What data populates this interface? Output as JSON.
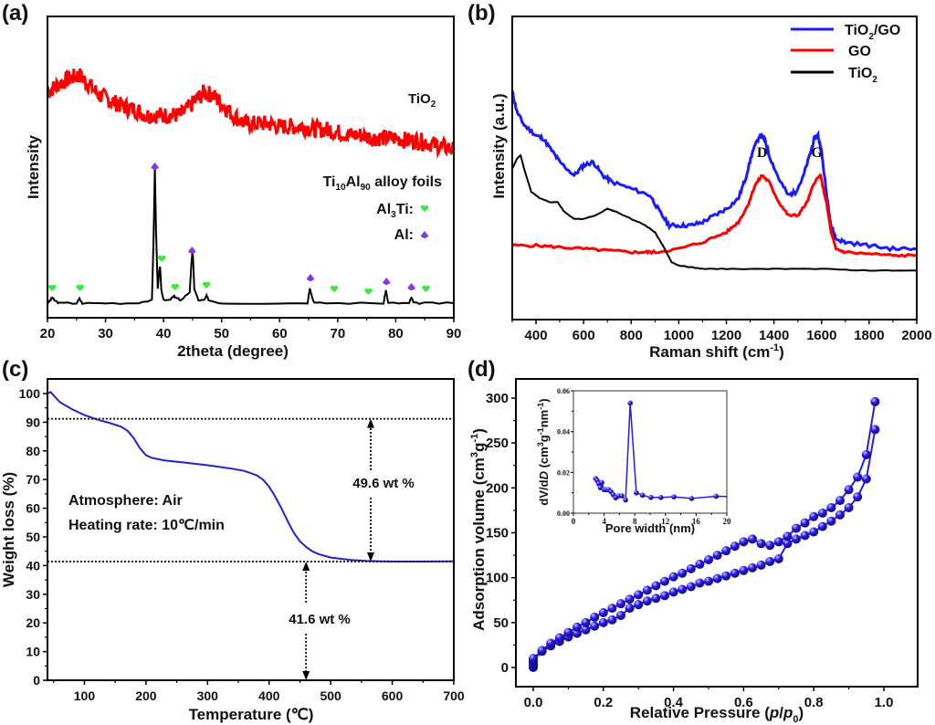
{
  "chart_data": [
    {
      "id": "a",
      "panel_label": "(a)",
      "type": "line",
      "title": "",
      "xlabel": "2theta (degree)",
      "ylabel": "Intensity",
      "xlim": [
        20,
        90
      ],
      "xticks": [
        20,
        30,
        40,
        50,
        60,
        70,
        80,
        90
      ],
      "yticks_shown": false,
      "series": [
        {
          "name": "TiO2",
          "label_main": "TiO",
          "label_sub": "2",
          "color": "#ff0000",
          "x": [
            20,
            22,
            24,
            25.5,
            27,
            29,
            31,
            33,
            35,
            37,
            39,
            41,
            43,
            45,
            47,
            48.5,
            50,
            52,
            54,
            56,
            58,
            60,
            62,
            64,
            66,
            68,
            70,
            72,
            74,
            76,
            78,
            80,
            82,
            84,
            86,
            88,
            90
          ],
          "y": [
            0.74,
            0.77,
            0.79,
            0.8,
            0.77,
            0.73,
            0.71,
            0.69,
            0.68,
            0.66,
            0.66,
            0.66,
            0.66,
            0.7,
            0.74,
            0.73,
            0.7,
            0.66,
            0.63,
            0.63,
            0.63,
            0.62,
            0.62,
            0.62,
            0.61,
            0.61,
            0.6,
            0.59,
            0.59,
            0.58,
            0.58,
            0.58,
            0.57,
            0.57,
            0.56,
            0.55,
            0.54
          ]
        },
        {
          "name": "Ti10Al90 alloy foils",
          "color": "#000000",
          "x": [
            20,
            20.5,
            20.8,
            21.2,
            22,
            25,
            25.5,
            26,
            30,
            35,
            38,
            38.3,
            38.5,
            38.7,
            39,
            39.2,
            39.4,
            39.6,
            40,
            41,
            41.8,
            42,
            42.5,
            43,
            44.5,
            44.8,
            45,
            45.3,
            46,
            47,
            47.4,
            47.8,
            50,
            55,
            64.8,
            65.2,
            65.6,
            66,
            70,
            77.9,
            78.3,
            78.7,
            82.3,
            82.7,
            83.1,
            85,
            90
          ],
          "y": [
            0.0,
            0.01,
            0.02,
            0.01,
            0.0,
            0.0,
            0.015,
            0.0,
            0.0,
            0.0,
            0.01,
            0.25,
            0.48,
            0.25,
            0.05,
            0.1,
            0.13,
            0.05,
            0.01,
            0.01,
            0.025,
            0.02,
            0.015,
            0.01,
            0.04,
            0.14,
            0.19,
            0.05,
            0.01,
            0.01,
            0.025,
            0.01,
            0.0,
            0.0,
            0.0,
            0.055,
            0.02,
            0.0,
            0.0,
            0.0,
            0.045,
            0.0,
            0.0,
            0.02,
            0.0,
            0.0,
            0.0
          ]
        }
      ],
      "legend": {
        "title_main": "Ti",
        "title_sub1": "10",
        "title_mid": "Al",
        "title_sub2": "90",
        "title_tail": " alloy foils",
        "entries": [
          {
            "label_main": "Al",
            "label_sub": "3",
            "label_tail": "Ti:",
            "marker": "heart",
            "color": "#33ee33"
          },
          {
            "label_main": "Al:",
            "marker": "spade",
            "color": "#8833ee"
          }
        ],
        "position": "right"
      },
      "markers": [
        {
          "x": 20.8,
          "type": "heart"
        },
        {
          "x": 25.6,
          "type": "heart"
        },
        {
          "x": 38.5,
          "type": "spade",
          "high": true
        },
        {
          "x": 39.7,
          "type": "heart"
        },
        {
          "x": 42.0,
          "type": "heart"
        },
        {
          "x": 44.9,
          "type": "spade"
        },
        {
          "x": 47.4,
          "type": "heart"
        },
        {
          "x": 65.3,
          "type": "spade"
        },
        {
          "x": 69.4,
          "type": "heart"
        },
        {
          "x": 75.3,
          "type": "heart"
        },
        {
          "x": 78.4,
          "type": "spade"
        },
        {
          "x": 82.7,
          "type": "spade"
        },
        {
          "x": 85.2,
          "type": "heart"
        }
      ]
    },
    {
      "id": "b",
      "panel_label": "(b)",
      "type": "line",
      "xlabel_main": "Raman shift (cm",
      "xlabel_sup": "-1",
      "xlabel_tail": ")",
      "ylabel": "Intensity (a.u.)",
      "xlim": [
        300,
        2000
      ],
      "xticks": [
        400,
        600,
        800,
        1000,
        1200,
        1400,
        1600,
        1800,
        2000
      ],
      "yticks_shown": false,
      "annotations": [
        {
          "text": "D",
          "x": 1350
        },
        {
          "text": "G",
          "x": 1580
        }
      ],
      "series": [
        {
          "name": "TiO2/GO",
          "label_main": "TiO",
          "label_sub": "2",
          "label_tail": "/GO",
          "color": "#1a1aff",
          "x": [
            300,
            320,
            350,
            400,
            430,
            470,
            500,
            560,
            600,
            640,
            680,
            720,
            800,
            880,
            920,
            960,
            1000,
            1050,
            1100,
            1150,
            1200,
            1250,
            1280,
            1310,
            1340,
            1360,
            1380,
            1420,
            1460,
            1490,
            1520,
            1550,
            1570,
            1585,
            1600,
            1620,
            1640,
            1660,
            1700,
            1800,
            1900,
            2000
          ],
          "y": [
            0.78,
            0.72,
            0.68,
            0.65,
            0.64,
            0.6,
            0.57,
            0.53,
            0.56,
            0.57,
            0.53,
            0.51,
            0.49,
            0.47,
            0.42,
            0.38,
            0.38,
            0.38,
            0.39,
            0.41,
            0.43,
            0.46,
            0.52,
            0.6,
            0.65,
            0.64,
            0.59,
            0.52,
            0.47,
            0.48,
            0.52,
            0.59,
            0.64,
            0.65,
            0.6,
            0.48,
            0.38,
            0.34,
            0.33,
            0.32,
            0.31,
            0.31
          ]
        },
        {
          "name": "GO",
          "label_main": "GO",
          "color": "#ff0000",
          "x": [
            300,
            400,
            500,
            600,
            700,
            800,
            860,
            900,
            1000,
            1100,
            1200,
            1250,
            1290,
            1320,
            1350,
            1380,
            1420,
            1460,
            1500,
            1540,
            1570,
            1595,
            1620,
            1640,
            1660,
            1700,
            1800,
            1900,
            2000
          ],
          "y": [
            0.32,
            0.32,
            0.315,
            0.31,
            0.305,
            0.3,
            0.3,
            0.3,
            0.31,
            0.33,
            0.36,
            0.39,
            0.44,
            0.5,
            0.53,
            0.51,
            0.45,
            0.41,
            0.41,
            0.45,
            0.51,
            0.53,
            0.45,
            0.36,
            0.31,
            0.3,
            0.295,
            0.29,
            0.29
          ]
        },
        {
          "name": "TiO2",
          "label_main": "TiO",
          "label_sub": "2",
          "color": "#000000",
          "x": [
            300,
            320,
            335,
            350,
            380,
            420,
            460,
            490,
            520,
            560,
            600,
            650,
            700,
            740,
            800,
            860,
            900,
            940,
            970,
            1000,
            1050,
            1100,
            1200,
            1400,
            1600,
            1800,
            2000
          ],
          "y": [
            0.55,
            0.58,
            0.59,
            0.55,
            0.48,
            0.46,
            0.45,
            0.45,
            0.42,
            0.4,
            0.4,
            0.41,
            0.43,
            0.42,
            0.4,
            0.38,
            0.36,
            0.31,
            0.27,
            0.26,
            0.255,
            0.25,
            0.25,
            0.25,
            0.25,
            0.245,
            0.245
          ]
        }
      ],
      "legend_position": "top-right"
    },
    {
      "id": "c",
      "panel_label": "(c)",
      "type": "line",
      "xlabel": "Temperature (℃)",
      "ylabel": "Weight loss (%)",
      "xlim": [
        40,
        700
      ],
      "ylim": [
        0,
        104
      ],
      "xticks": [
        100,
        200,
        300,
        400,
        500,
        600,
        700
      ],
      "yticks": [
        0,
        10,
        20,
        30,
        40,
        50,
        60,
        70,
        80,
        90,
        100
      ],
      "series": [
        {
          "name": "TGA",
          "color": "#2222cc",
          "x": [
            40,
            45,
            60,
            80,
            100,
            120,
            140,
            160,
            170,
            180,
            190,
            200,
            210,
            230,
            260,
            300,
            340,
            360,
            380,
            390,
            400,
            410,
            420,
            430,
            440,
            450,
            460,
            470,
            480,
            500,
            530,
            560,
            600,
            650,
            700
          ],
          "y": [
            100,
            100.5,
            97,
            94.5,
            92.5,
            91,
            89.8,
            88.4,
            87,
            84.5,
            81,
            78.5,
            77.5,
            76.7,
            76,
            75,
            73.8,
            73,
            71.5,
            70,
            67.5,
            64,
            60,
            55.5,
            51.5,
            48.5,
            46.5,
            45,
            44,
            42.8,
            42,
            41.6,
            41.4,
            41.4,
            41.5
          ]
        }
      ],
      "reference_lines": [
        91.2,
        41.4
      ],
      "annotations": [
        {
          "text": "Atmosphere: Air"
        },
        {
          "text": "Heating rate: 10℃/min"
        },
        {
          "text": "49.6 wt %",
          "x": 565,
          "from": 41.4,
          "to": 91.2
        },
        {
          "text": "41.6 wt %",
          "x": 460,
          "from": 0,
          "to": 41.4
        }
      ]
    },
    {
      "id": "d",
      "panel_label": "(d)",
      "type": "scatter",
      "xlabel_main": "Relative Pressure (",
      "xlabel_p": "p",
      "xlabel_slash": "/",
      "xlabel_p0": "p",
      "xlabel_sub": "0",
      "xlabel_tail": ")",
      "ylabel_main": "Adsorption volume (cm",
      "ylabel_sup1": "3",
      "ylabel_mid": "g",
      "ylabel_sup2": "-1",
      "ylabel_tail": ")",
      "xlim": [
        -0.05,
        1.1
      ],
      "ylim": [
        -10,
        310
      ],
      "xticks": [
        0.0,
        0.2,
        0.4,
        0.6,
        0.8,
        1.0
      ],
      "xtick_labels": [
        "0.0",
        "0.2",
        "0.4",
        "0.6",
        "0.8",
        "1.0"
      ],
      "yticks": [
        0,
        50,
        100,
        150,
        200,
        250,
        300
      ],
      "marker_color": "#2a1aee",
      "series": [
        {
          "name": "adsorption",
          "x": [
            0.0,
            0.0,
            0.0,
            0.0,
            0.0,
            0.025,
            0.05,
            0.075,
            0.1,
            0.125,
            0.15,
            0.175,
            0.2,
            0.225,
            0.25,
            0.275,
            0.3,
            0.325,
            0.35,
            0.375,
            0.4,
            0.425,
            0.45,
            0.475,
            0.5,
            0.525,
            0.55,
            0.575,
            0.6,
            0.625,
            0.65,
            0.675,
            0.7,
            0.725,
            0.75,
            0.775,
            0.8,
            0.825,
            0.85,
            0.875,
            0.9,
            0.925,
            0.95,
            0.975
          ],
          "y": [
            0,
            2,
            4,
            6,
            8,
            18,
            24,
            29,
            34,
            38,
            42,
            46,
            50,
            53,
            58,
            66,
            70,
            74,
            77,
            80,
            84,
            87,
            90,
            94,
            96,
            99,
            102,
            105,
            108,
            111,
            114,
            118,
            121,
            138,
            143,
            147,
            151,
            157,
            163,
            170,
            178,
            190,
            210,
            265
          ]
        },
        {
          "name": "desorption",
          "x": [
            0.975,
            0.95,
            0.925,
            0.9,
            0.875,
            0.85,
            0.825,
            0.8,
            0.775,
            0.75,
            0.725,
            0.7,
            0.675,
            0.65,
            0.625,
            0.6,
            0.575,
            0.55,
            0.525,
            0.5,
            0.475,
            0.45,
            0.425,
            0.4,
            0.375,
            0.35,
            0.325,
            0.3,
            0.275,
            0.25,
            0.225,
            0.2,
            0.175,
            0.15,
            0.125,
            0.1,
            0.075,
            0.05,
            0.025,
            0.0
          ],
          "y": [
            296,
            237,
            212,
            198,
            186,
            178,
            172,
            168,
            161,
            155,
            146,
            140,
            136,
            138,
            143,
            140,
            135,
            130,
            125,
            120,
            115,
            110,
            105,
            101,
            96,
            91,
            86,
            81,
            76,
            71,
            66,
            61,
            56,
            50,
            45,
            39,
            33,
            27,
            19,
            10
          ]
        }
      ],
      "inset": {
        "type": "line",
        "xlabel": "Pore width (nm)",
        "ylabel_main": "dV/dD (cm",
        "ylabel_italic": "dV/dD",
        "ylabel_sup1": "3",
        "ylabel_mid": "g",
        "ylabel_sup2": "-1",
        "ylabel_mid2": "nm",
        "ylabel_sup3": "-1",
        "ylabel_tail": ")",
        "xlim": [
          0,
          20
        ],
        "ylim": [
          0,
          0.06
        ],
        "xticks": [
          0,
          4,
          8,
          12,
          16,
          20
        ],
        "yticks": [
          0.0,
          0.02,
          0.04,
          0.06
        ],
        "ytick_labels": [
          "0.00",
          "0.02",
          "0.04",
          "0.06"
        ],
        "x": [
          2.9,
          3.1,
          3.3,
          3.5,
          3.7,
          4.0,
          4.3,
          4.6,
          4.9,
          5.2,
          5.5,
          5.9,
          6.3,
          6.8,
          7.4,
          8.2,
          9.0,
          10.1,
          11.4,
          13.1,
          15.4,
          18.6,
          20.0
        ],
        "y": [
          0.017,
          0.016,
          0.0145,
          0.0125,
          0.015,
          0.0115,
          0.0115,
          0.0115,
          0.0105,
          0.009,
          0.0075,
          0.0085,
          0.0085,
          0.0065,
          0.054,
          0.01,
          0.0088,
          0.0077,
          0.0077,
          0.008,
          0.0072,
          0.0083,
          0.0082
        ]
      }
    }
  ]
}
